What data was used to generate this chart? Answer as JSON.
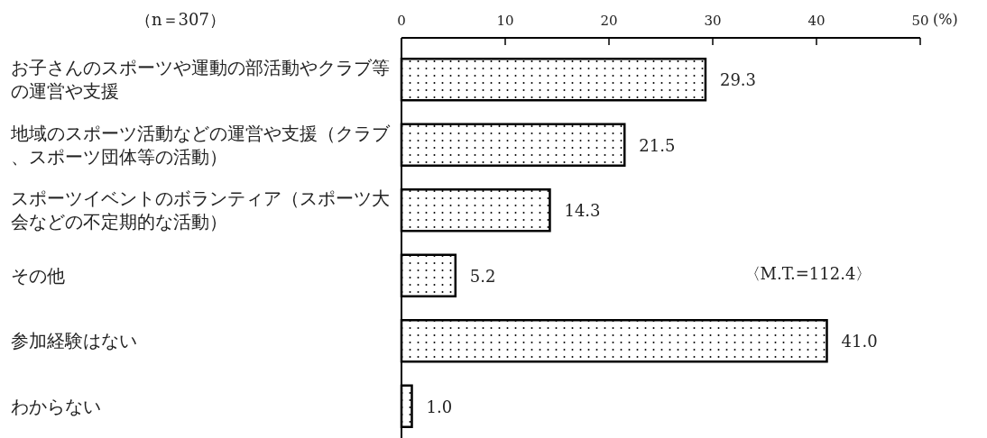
{
  "chart_data": {
    "type": "bar",
    "orientation": "horizontal",
    "categories": [
      "お子さんのスポーツや運動の部活動やクラブ等の運営や支援",
      "地域のスポーツ活動などの運営や支援（クラブ、スポーツ団体等の活動）",
      "スポーツイベントのボランティア（スポーツ大会などの不定期的な活動）",
      "その他",
      "参加経験はない",
      "わからない"
    ],
    "values": [
      29.3,
      21.5,
      14.3,
      5.2,
      41.0,
      1.0
    ],
    "value_labels": [
      "29.3",
      "21.5",
      "14.3",
      "5.2",
      "41.0",
      "1.0"
    ],
    "color": "#000000",
    "xlim": [
      0,
      50
    ],
    "xticks": [
      0,
      10,
      20,
      30,
      40,
      50
    ],
    "xlabel": "(%)",
    "annotations": [
      "（n＝307）",
      "〈M.T.=112.4〉"
    ]
  }
}
